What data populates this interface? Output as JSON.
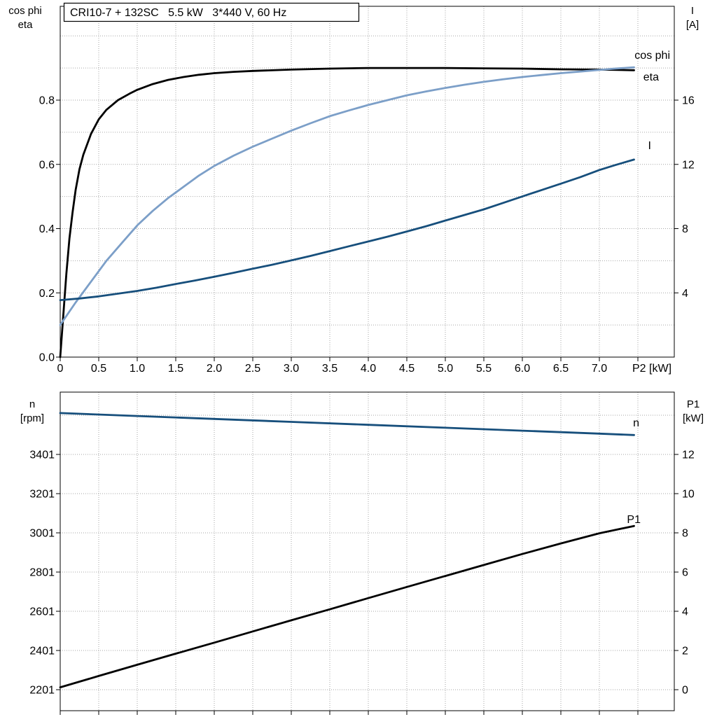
{
  "colors": {
    "background": "#ffffff",
    "axis": "#000000",
    "grid": "#a6a6a6",
    "eta": "#000000",
    "cos_phi": "#7c9fc8",
    "current": "#174f7c",
    "speed": "#174f7c",
    "power": "#000000"
  },
  "chart_data": [
    {
      "type": "line",
      "title": "CRI10-7 + 132SC   5.5 kW   3*440 V, 60 Hz",
      "x_axis": {
        "label": "P2 [kW]",
        "min": 0,
        "max": 7.97,
        "ticks": [
          0,
          0.5,
          1.0,
          1.5,
          2.0,
          2.5,
          3.0,
          3.5,
          4.0,
          4.5,
          5.0,
          5.5,
          6.0,
          6.5,
          7.0,
          7.5
        ],
        "tick_labels": [
          "0",
          "0.5",
          "1.0",
          "1.5",
          "2.0",
          "2.5",
          "3.0",
          "3.5",
          "4.0",
          "4.5",
          "5.0",
          "5.5",
          "6.0",
          "6.5",
          "7.0",
          ""
        ]
      },
      "y_left": {
        "label_lines": [
          "cos phi",
          "eta"
        ],
        "min": 0,
        "max": 1.09,
        "ticks": [
          0.0,
          0.2,
          0.4,
          0.6,
          0.8
        ],
        "tick_labels": [
          "0.0",
          "0.2",
          "0.4",
          "0.6",
          "0.8"
        ]
      },
      "y_right": {
        "label_lines": [
          "I",
          "[A]"
        ],
        "min": 0,
        "max": 21.8,
        "ticks": [
          4,
          8,
          12,
          16
        ],
        "tick_labels": [
          "4",
          "8",
          "12",
          "16"
        ]
      },
      "grid": true,
      "legend_position": "inline-right",
      "series": [
        {
          "name": "eta",
          "axis": "left",
          "unit": "",
          "color": "#000000",
          "points": [
            [
              0,
              0
            ],
            [
              0.04,
              0.13
            ],
            [
              0.08,
              0.26
            ],
            [
              0.12,
              0.37
            ],
            [
              0.16,
              0.45
            ],
            [
              0.2,
              0.52
            ],
            [
              0.25,
              0.585
            ],
            [
              0.3,
              0.63
            ],
            [
              0.4,
              0.695
            ],
            [
              0.5,
              0.74
            ],
            [
              0.6,
              0.77
            ],
            [
              0.75,
              0.8
            ],
            [
              0.9,
              0.82
            ],
            [
              1.0,
              0.832
            ],
            [
              1.2,
              0.85
            ],
            [
              1.4,
              0.863
            ],
            [
              1.6,
              0.872
            ],
            [
              1.8,
              0.879
            ],
            [
              2.0,
              0.884
            ],
            [
              2.25,
              0.888
            ],
            [
              2.5,
              0.891
            ],
            [
              3.0,
              0.895
            ],
            [
              3.5,
              0.898
            ],
            [
              4.0,
              0.9
            ],
            [
              4.5,
              0.9
            ],
            [
              5.0,
              0.9
            ],
            [
              5.5,
              0.899
            ],
            [
              6.0,
              0.898
            ],
            [
              6.5,
              0.896
            ],
            [
              7.0,
              0.895
            ],
            [
              7.45,
              0.893
            ]
          ]
        },
        {
          "name": "cos phi",
          "axis": "left",
          "unit": "",
          "color": "#7c9fc8",
          "points": [
            [
              0,
              0.1
            ],
            [
              0.2,
              0.17
            ],
            [
              0.4,
              0.235
            ],
            [
              0.6,
              0.3
            ],
            [
              0.8,
              0.355
            ],
            [
              1.0,
              0.41
            ],
            [
              1.2,
              0.455
            ],
            [
              1.4,
              0.495
            ],
            [
              1.6,
              0.53
            ],
            [
              1.8,
              0.565
            ],
            [
              2.0,
              0.595
            ],
            [
              2.25,
              0.627
            ],
            [
              2.5,
              0.655
            ],
            [
              2.75,
              0.68
            ],
            [
              3.0,
              0.705
            ],
            [
              3.25,
              0.728
            ],
            [
              3.5,
              0.75
            ],
            [
              3.75,
              0.768
            ],
            [
              4.0,
              0.785
            ],
            [
              4.25,
              0.8
            ],
            [
              4.5,
              0.815
            ],
            [
              4.75,
              0.827
            ],
            [
              5.0,
              0.838
            ],
            [
              5.25,
              0.848
            ],
            [
              5.5,
              0.857
            ],
            [
              5.75,
              0.865
            ],
            [
              6.0,
              0.872
            ],
            [
              6.25,
              0.878
            ],
            [
              6.5,
              0.884
            ],
            [
              6.75,
              0.889
            ],
            [
              7.0,
              0.894
            ],
            [
              7.2,
              0.898
            ],
            [
              7.45,
              0.902
            ]
          ]
        },
        {
          "name": "I",
          "axis": "right",
          "unit": "A",
          "color": "#174f7c",
          "points": [
            [
              0,
              3.55
            ],
            [
              0.25,
              3.65
            ],
            [
              0.5,
              3.78
            ],
            [
              0.75,
              3.95
            ],
            [
              1.0,
              4.12
            ],
            [
              1.25,
              4.32
            ],
            [
              1.5,
              4.55
            ],
            [
              1.75,
              4.77
            ],
            [
              2.0,
              5.0
            ],
            [
              2.25,
              5.25
            ],
            [
              2.5,
              5.5
            ],
            [
              2.75,
              5.75
            ],
            [
              3.0,
              6.02
            ],
            [
              3.25,
              6.3
            ],
            [
              3.5,
              6.6
            ],
            [
              3.75,
              6.9
            ],
            [
              4.0,
              7.2
            ],
            [
              4.25,
              7.5
            ],
            [
              4.5,
              7.82
            ],
            [
              4.75,
              8.15
            ],
            [
              5.0,
              8.5
            ],
            [
              5.25,
              8.85
            ],
            [
              5.5,
              9.2
            ],
            [
              5.75,
              9.6
            ],
            [
              6.0,
              10.0
            ],
            [
              6.25,
              10.4
            ],
            [
              6.5,
              10.8
            ],
            [
              6.75,
              11.2
            ],
            [
              7.0,
              11.65
            ],
            [
              7.2,
              11.95
            ],
            [
              7.45,
              12.3
            ]
          ]
        }
      ]
    },
    {
      "type": "line",
      "title": "",
      "x_axis": {
        "label": "",
        "min": 0,
        "max": 7.97,
        "ticks": [
          0,
          0.5,
          1.0,
          1.5,
          2.0,
          2.5,
          3.0,
          3.5,
          4.0,
          4.5,
          5.0,
          5.5,
          6.0,
          6.5,
          7.0,
          7.5
        ],
        "tick_labels": []
      },
      "y_left": {
        "label_lines": [
          "n",
          "[rpm]"
        ],
        "min": 2094,
        "max": 3719,
        "ticks": [
          2201,
          2401,
          2601,
          2801,
          3001,
          3201,
          3401
        ],
        "tick_labels": [
          "2201",
          "2401",
          "2601",
          "2801",
          "3001",
          "3201",
          "3401"
        ]
      },
      "y_right": {
        "label_lines": [
          "P1",
          "[kW]"
        ],
        "min": -1,
        "max": 15.2,
        "ticks": [
          0,
          2,
          4,
          6,
          8,
          10,
          12
        ],
        "tick_labels": [
          "0",
          "2",
          "4",
          "6",
          "8",
          "10",
          "12"
        ]
      },
      "grid": true,
      "legend_position": "inline-right",
      "series": [
        {
          "name": "n",
          "axis": "left",
          "unit": "rpm",
          "color": "#174f7c",
          "points": [
            [
              0,
              3612
            ],
            [
              1,
              3597
            ],
            [
              2,
              3582
            ],
            [
              3,
              3567
            ],
            [
              4,
              3552
            ],
            [
              5,
              3537
            ],
            [
              6,
              3522
            ],
            [
              7,
              3507
            ],
            [
              7.45,
              3500
            ]
          ]
        },
        {
          "name": "P1",
          "axis": "right",
          "unit": "kW",
          "color": "#000000",
          "points": [
            [
              0,
              0.12
            ],
            [
              0.5,
              0.7
            ],
            [
              1,
              1.27
            ],
            [
              1.5,
              1.84
            ],
            [
              2,
              2.4
            ],
            [
              2.5,
              2.97
            ],
            [
              3,
              3.54
            ],
            [
              3.5,
              4.1
            ],
            [
              4,
              4.67
            ],
            [
              4.5,
              5.24
            ],
            [
              5,
              5.8
            ],
            [
              5.5,
              6.36
            ],
            [
              6,
              6.92
            ],
            [
              6.5,
              7.46
            ],
            [
              7,
              7.98
            ],
            [
              7.45,
              8.35
            ]
          ]
        }
      ]
    }
  ]
}
